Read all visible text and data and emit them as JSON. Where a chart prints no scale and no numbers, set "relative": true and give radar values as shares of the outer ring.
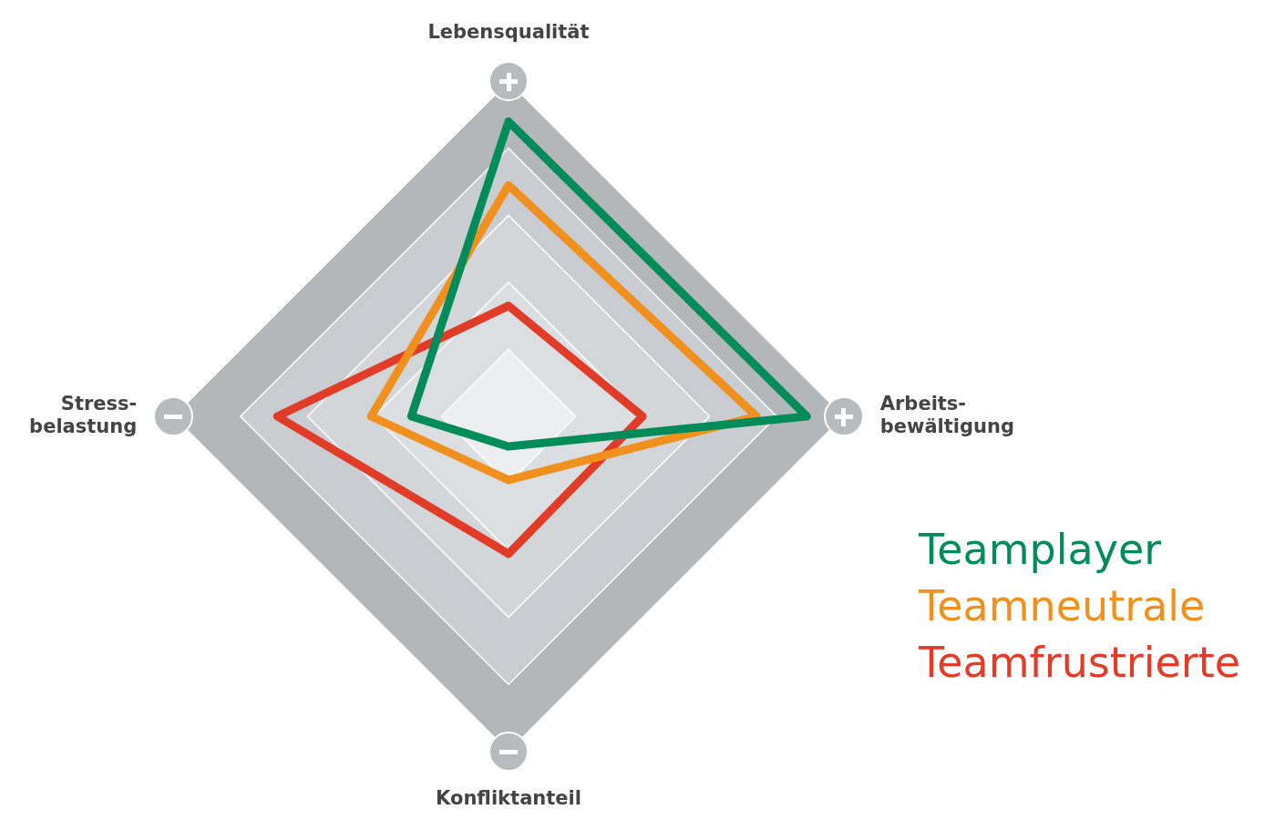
{
  "chart_data": {
    "type": "radar",
    "relative": true,
    "grid": true,
    "legend": "bottom right",
    "marker": "none",
    "line_style": "solid",
    "categories": [
      "Lebensqualität",
      "Arbeits-\nbewältigung",
      "Konfliktanteil",
      "Stress-\nbelastung"
    ],
    "series": [
      {
        "name": "Teamplayer",
        "color": "#008c5a",
        "values": [
          0.88,
          0.89,
          0.09,
          0.29
        ]
      },
      {
        "name": "Teamneutrale",
        "color": "#f0901e",
        "values": [
          0.69,
          0.74,
          0.19,
          0.41
        ]
      },
      {
        "name": "Teamfrustrierte",
        "color": "#e03c28",
        "values": [
          0.33,
          0.4,
          0.41,
          0.69
        ]
      }
    ]
  }
}
